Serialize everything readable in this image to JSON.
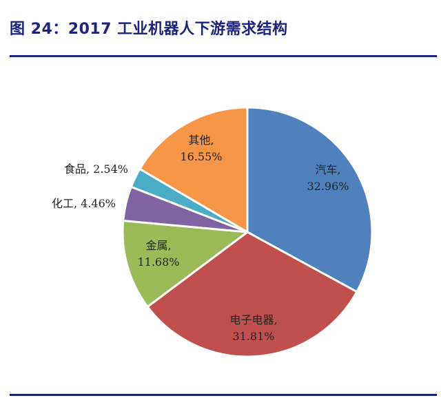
{
  "figure": {
    "title": "图 24：2017 工业机器人下游需求结构"
  },
  "chart_data": {
    "type": "pie",
    "start_angle_deg": 0,
    "direction": "clockwise",
    "slices": [
      {
        "label": "汽车,",
        "value_text": "32.96%",
        "value": 32.96,
        "color": "#4f81bd"
      },
      {
        "label": "电子电器,",
        "value_text": "31.81%",
        "value": 31.81,
        "color": "#c0504d"
      },
      {
        "label": "金属,",
        "value_text": "11.68%",
        "value": 11.68,
        "color": "#9bbb59"
      },
      {
        "label": "化工, 4.46%",
        "value_text": "",
        "value": 4.46,
        "color": "#8064a2"
      },
      {
        "label": "食品, 2.54%",
        "value_text": "",
        "value": 2.54,
        "color": "#4bacc6"
      },
      {
        "label": "其他,",
        "value_text": "16.55%",
        "value": 16.55,
        "color": "#f79646"
      }
    ]
  }
}
